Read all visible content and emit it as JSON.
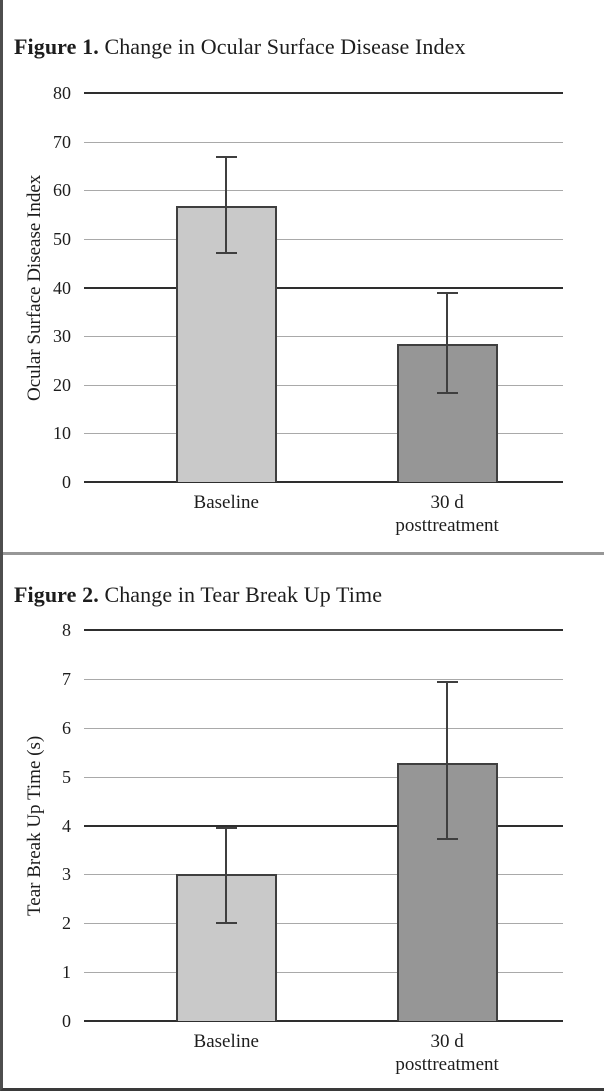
{
  "figures": [
    {
      "label_bold": "Figure 1.",
      "title_text": "Change in Ocular Surface Disease Index"
    },
    {
      "label_bold": "Figure 2.",
      "title_text": "Change in Tear Break Up Time"
    }
  ],
  "chart_data": [
    {
      "type": "bar",
      "title": "Figure 1. Change in Ocular Surface Disease Index",
      "categories": [
        "Baseline",
        "30 d\nposttreatment"
      ],
      "values": [
        56.8,
        28.4
      ],
      "error_low": [
        47.0,
        18.4
      ],
      "error_high": [
        66.8,
        38.8
      ],
      "ylabel": "Ocular Surface Disease Index",
      "xlabel": "",
      "ylim": [
        0,
        80
      ],
      "yticks": [
        0,
        10,
        20,
        30,
        40,
        50,
        60,
        70,
        80
      ],
      "major_gridlines": [
        0,
        40,
        80
      ],
      "bar_colors": [
        "#c9c9c9",
        "#969696"
      ],
      "grid": true,
      "legend": false
    },
    {
      "type": "bar",
      "title": "Figure 2. Change in Tear Break Up Time",
      "categories": [
        "Baseline",
        "30 d\nposttreatment"
      ],
      "values": [
        3.0,
        5.27
      ],
      "error_low": [
        2.0,
        3.73
      ],
      "error_high": [
        3.95,
        6.94
      ],
      "ylabel": "Tear Break Up Time (s)",
      "xlabel": "",
      "ylim": [
        0,
        8
      ],
      "yticks": [
        0,
        1,
        2,
        3,
        4,
        5,
        6,
        7,
        8
      ],
      "major_gridlines": [
        0,
        4,
        8
      ],
      "bar_colors": [
        "#c9c9c9",
        "#969696"
      ],
      "grid": true,
      "legend": false
    }
  ],
  "colors": {
    "bar_light": "#c9c9c9",
    "bar_dark": "#969696",
    "bar_border": "#3f3f3f",
    "gridline_minor": "#a9a9a9",
    "gridline_major": "#2e2e2e",
    "error_bar": "#3f3f3f",
    "text": "#1d1d1d"
  }
}
